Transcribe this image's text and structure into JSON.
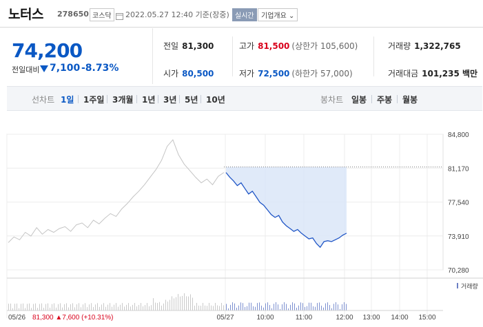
{
  "header": {
    "name": "노터스",
    "code": "278650",
    "market": "코스닥",
    "date": "2022.05.27 12:40 기준(장중)",
    "realtime": "실시간",
    "overview": "기업개요 ⌄"
  },
  "price": {
    "current": "74,200",
    "compare_label": "전일대비",
    "change": "7,100",
    "change_pct": "-8.73%"
  },
  "stats": {
    "prev_close_label": "전일",
    "prev_close": "81,300",
    "open_label": "시가",
    "open": "80,500",
    "high_label": "고가",
    "high": "81,500",
    "high_sub": "(상한가 105,600)",
    "low_label": "저가",
    "low": "72,500",
    "low_sub": "(하한가 57,000)",
    "volume_label": "거래량",
    "volume": "1,322,765",
    "amount_label": "거래대금",
    "amount": "101,235 백만"
  },
  "tabs": {
    "line_label": "선차트",
    "periods": [
      "1일",
      "1주일",
      "3개월",
      "1년",
      "3년",
      "5년",
      "10년"
    ],
    "candle_label": "봉차트",
    "candles": [
      "일봉",
      "주봉",
      "월봉"
    ]
  },
  "chart_data": {
    "type": "line",
    "y_ticks": [
      "84,800",
      "81,170",
      "77,540",
      "73,910",
      "70,280"
    ],
    "ylim": [
      70280,
      84800
    ],
    "x_ticks": [
      "05/26",
      "05/27",
      "10:00",
      "11:00",
      "12:00",
      "13:00",
      "14:00",
      "15:00"
    ],
    "prev_day_label": "05/26",
    "prev_day_info": "81,300 ▲7,600 (+10.31%)",
    "volume_label": "거래량",
    "prev_close": 81300,
    "series": [
      {
        "values": [
          80700,
          80200,
          79800,
          79300,
          79600,
          79000,
          78400,
          78700,
          78100,
          77500,
          77200,
          76700,
          76200,
          75900,
          76100,
          75400,
          75000,
          74700,
          74400,
          74600,
          74200,
          73900,
          73600,
          73700,
          73100,
          72700,
          73300,
          73400,
          73300,
          73500,
          73700,
          74000,
          74200
        ]
      },
      {
        "values": [
          73200,
          73800,
          73500,
          74300,
          73900,
          74800,
          74100,
          74600,
          74300,
          74700,
          74900,
          74400,
          75100,
          75300,
          74800,
          75600,
          75200,
          75800,
          76300,
          76000,
          76800,
          77400,
          78100,
          78700,
          79400,
          80200,
          81000,
          82000,
          83500,
          84200,
          82600,
          81600,
          80900,
          80200,
          79600,
          80000,
          79400,
          80300,
          80700
        ]
      }
    ]
  }
}
